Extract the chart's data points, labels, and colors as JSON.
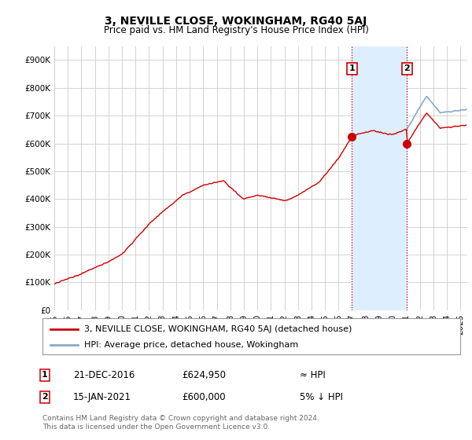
{
  "title": "3, NEVILLE CLOSE, WOKINGHAM, RG40 5AJ",
  "subtitle": "Price paid vs. HM Land Registry's House Price Index (HPI)",
  "ylabel_ticks": [
    "£0",
    "£100K",
    "£200K",
    "£300K",
    "£400K",
    "£500K",
    "£600K",
    "£700K",
    "£800K",
    "£900K"
  ],
  "ytick_values": [
    0,
    100000,
    200000,
    300000,
    400000,
    500000,
    600000,
    700000,
    800000,
    900000
  ],
  "ylim": [
    0,
    950000
  ],
  "xlim_start": 1995.0,
  "xlim_end": 2025.5,
  "sale1_x": 2016.97,
  "sale1_y": 624950,
  "sale1_label": "1",
  "sale1_date": "21-DEC-2016",
  "sale1_price": "£624,950",
  "sale1_hpi": "≈ HPI",
  "sale2_x": 2021.04,
  "sale2_y": 600000,
  "sale2_label": "2",
  "sale2_date": "15-JAN-2021",
  "sale2_price": "£600,000",
  "sale2_hpi": "5% ↓ HPI",
  "red_line_color": "#cc0000",
  "blue_line_color": "#88aacc",
  "shade_color": "#ddeeff",
  "marker_color": "#cc0000",
  "vline_color": "#cc0000",
  "grid_color": "#cccccc",
  "bg_color": "#ffffff",
  "legend_label_red": "3, NEVILLE CLOSE, WOKINGHAM, RG40 5AJ (detached house)",
  "legend_label_blue": "HPI: Average price, detached house, Wokingham",
  "footnote": "Contains HM Land Registry data © Crown copyright and database right 2024.\nThis data is licensed under the Open Government Licence v3.0.",
  "title_fontsize": 10,
  "subtitle_fontsize": 8.5,
  "axis_fontsize": 7.5,
  "legend_fontsize": 8
}
